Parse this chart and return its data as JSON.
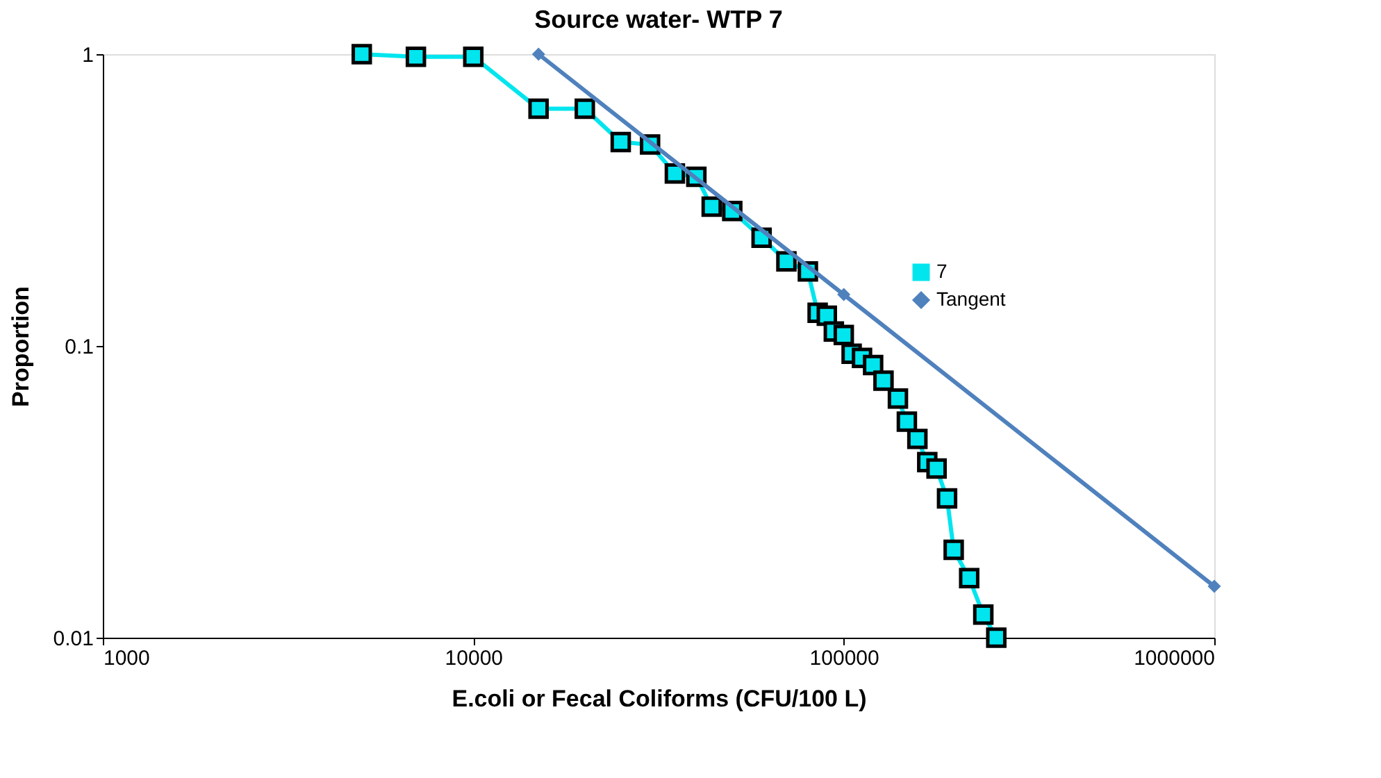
{
  "chart_data": {
    "type": "line",
    "title": "Source water- WTP 7",
    "xlabel": "E.coli or Fecal Coliforms (CFU/100 L)",
    "ylabel": "Proportion",
    "log": "xy",
    "xlim": [
      1000,
      1000000
    ],
    "xticks": [
      1000,
      10000,
      100000,
      1000000
    ],
    "ylim": [
      0.01,
      1
    ],
    "yticks": [
      0.01,
      0.1,
      1
    ],
    "grid": false,
    "legend": "top right",
    "series": [
      {
        "name": "7",
        "color": "#00e5ee",
        "marker": "square",
        "x": [
          5000,
          7000,
          10000,
          15000,
          20000,
          25000,
          30000,
          35000,
          40000,
          44000,
          50000,
          60000,
          70000,
          80000,
          85000,
          90000,
          94000,
          100000,
          105000,
          112000,
          120000,
          128000,
          140000,
          148000,
          158000,
          168000,
          178000,
          190000,
          198000,
          218000,
          238000,
          258000
        ],
        "values": [
          1,
          0.98,
          0.98,
          0.65,
          0.65,
          0.5,
          0.49,
          0.39,
          0.38,
          0.3,
          0.29,
          0.235,
          0.195,
          0.18,
          0.13,
          0.127,
          0.112,
          0.109,
          0.094,
          0.091,
          0.086,
          0.076,
          0.066,
          0.055,
          0.048,
          0.04,
          0.038,
          0.03,
          0.02,
          0.016,
          0.012,
          0.01
        ]
      },
      {
        "name": "Tangent",
        "color": "#4f81bd",
        "marker": "diamond",
        "x": [
          15000,
          100000,
          1000000
        ],
        "values": [
          1,
          0.15,
          0.015
        ]
      }
    ]
  }
}
